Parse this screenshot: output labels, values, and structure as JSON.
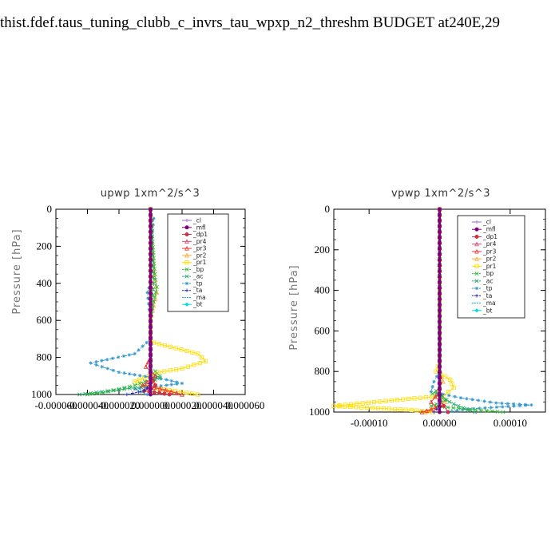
{
  "page_title": "thist.fdef.taus_tuning_clubb_c_invrs_tau_wpxp_n2_threshm  BUDGET at240E,29",
  "series_colors": {
    "_cl": "#9966cc",
    "_mfl": "#800080",
    "_dp1": "#cc3344",
    "_pr4": "#dd4466",
    "_pr3": "#ee3333",
    "_pr2": "#ffaa33",
    "_pr1": "#ffdd00",
    "_bp": "#33bb33",
    "_ac": "#22aa66",
    "_tp": "#3399cc",
    "_ta": "#2222bb",
    "_ma": "#00bbdd",
    "_bt": "#00dddd"
  },
  "chart_data": [
    {
      "type": "line",
      "title": "upwp   1xm^2/s^3",
      "ylabel": "Pressure [hPa]",
      "ylim": [
        1000,
        0
      ],
      "xlim": [
        -6e-05,
        6e-05
      ],
      "yticks": [
        0,
        200,
        400,
        600,
        800,
        1000
      ],
      "xticks": [
        -6e-05,
        -4e-05,
        -2e-05,
        0.0,
        2e-05,
        4e-05,
        6e-05
      ],
      "xtick_labels": [
        "-0.000060",
        "-0.000040",
        "-0.000020",
        "0.000000",
        "0.000020",
        "0.000040",
        "0.000060"
      ],
      "legend": [
        "_cl",
        "_mfl",
        "_dp1",
        "_pr4",
        "_pr3",
        "_pr2",
        "_pr1",
        "_bp",
        "_ac",
        "_tp",
        "_ta",
        "_ma",
        "_bt"
      ],
      "legend_position": "top-right",
      "series": [
        {
          "name": "_pr1",
          "points": [
            [
              0,
              0
            ],
            [
              0,
              700
            ],
            [
              2e-06,
              720
            ],
            [
              3e-05,
              780
            ],
            [
              3.5e-05,
              820
            ],
            [
              2e-05,
              860
            ],
            [
              5e-06,
              880
            ],
            [
              -1e-05,
              930
            ],
            [
              -2e-06,
              960
            ],
            [
              3e-05,
              1000
            ]
          ]
        },
        {
          "name": "_pr2",
          "points": [
            [
              1e-06,
              50
            ],
            [
              5e-07,
              150
            ],
            [
              3e-06,
              380
            ],
            [
              4e-06,
              450
            ],
            [
              2e-06,
              520
            ],
            [
              0,
              600
            ],
            [
              0,
              900
            ],
            [
              4e-06,
              960
            ],
            [
              2e-05,
              1000
            ]
          ]
        },
        {
          "name": "_tp",
          "points": [
            [
              2e-06,
              50
            ],
            [
              1e-06,
              150
            ],
            [
              0,
              400
            ],
            [
              -2e-06,
              450
            ],
            [
              0,
              600
            ],
            [
              0,
              700
            ],
            [
              -1e-05,
              780
            ],
            [
              -3.8e-05,
              830
            ],
            [
              -2e-05,
              880
            ],
            [
              1e-05,
              920
            ],
            [
              2e-05,
              940
            ],
            [
              -1e-05,
              970
            ],
            [
              -2e-06,
              1000
            ]
          ]
        },
        {
          "name": "_bp",
          "points": [
            [
              0,
              0
            ],
            [
              3e-06,
              380
            ],
            [
              4e-06,
              420
            ],
            [
              2e-06,
              500
            ],
            [
              0,
              600
            ],
            [
              0,
              850
            ],
            [
              6e-06,
              900
            ],
            [
              -1e-05,
              950
            ],
            [
              -3e-05,
              990
            ],
            [
              -4e-05,
              1000
            ]
          ]
        },
        {
          "name": "_ac",
          "points": [
            [
              0,
              0
            ],
            [
              2e-06,
              400
            ],
            [
              1e-06,
              500
            ],
            [
              0,
              600
            ],
            [
              0,
              880
            ],
            [
              6e-06,
              910
            ],
            [
              -6e-06,
              960
            ],
            [
              -4.5e-05,
              1000
            ]
          ]
        },
        {
          "name": "_pr3",
          "points": [
            [
              0,
              0
            ],
            [
              0,
              800
            ],
            [
              -3e-06,
              850
            ],
            [
              3e-06,
              900
            ],
            [
              -5e-06,
              950
            ],
            [
              6e-06,
              970
            ],
            [
              2e-05,
              1000
            ]
          ]
        },
        {
          "name": "_dp1",
          "points": [
            [
              0,
              0
            ],
            [
              0,
              900
            ],
            [
              3e-06,
              950
            ],
            [
              -4e-06,
              980
            ],
            [
              1.2e-05,
              1000
            ]
          ]
        },
        {
          "name": "_ta",
          "points": [
            [
              0,
              0
            ],
            [
              0,
              950
            ],
            [
              -4e-06,
              980
            ],
            [
              -1.5e-05,
              1000
            ]
          ]
        },
        {
          "name": "_ma",
          "points": [
            [
              0,
              0
            ],
            [
              5e-07,
              800
            ],
            [
              0,
              1000
            ]
          ]
        },
        {
          "name": "_mfl",
          "points": [
            [
              0,
              0
            ],
            [
              0,
              1000
            ]
          ]
        }
      ]
    },
    {
      "type": "line",
      "title": "vpwp   1xm^2/s^3",
      "ylabel": "Pressure [hPa]",
      "ylim": [
        1000,
        0
      ],
      "xlim": [
        -0.00015,
        0.00015
      ],
      "yticks": [
        0,
        200,
        400,
        600,
        800,
        1000
      ],
      "xticks": [
        -0.0001,
        0.0,
        0.0001
      ],
      "xtick_labels": [
        "-0.00010",
        "0.00000",
        "0.00010"
      ],
      "legend": [
        "_cl",
        "_mfl",
        "_dp1",
        "_pr4",
        "_pr3",
        "_pr2",
        "_pr1",
        "_bp",
        "_ac",
        "_tp",
        "_ta",
        "_ma",
        "_bt"
      ],
      "legend_position": "top-right",
      "series": [
        {
          "name": "_pr1",
          "points": [
            [
              0,
              0
            ],
            [
              0,
              750
            ],
            [
              -5e-06,
              800
            ],
            [
              1.5e-05,
              840
            ],
            [
              2e-05,
              880
            ],
            [
              5e-06,
              920
            ],
            [
              -6e-05,
              940
            ],
            [
              -0.00015,
              970
            ],
            [
              -4e-05,
              990
            ],
            [
              -1e-05,
              1000
            ]
          ]
        },
        {
          "name": "_pr2",
          "points": [
            [
              0,
              0
            ],
            [
              0,
              800
            ],
            [
              5e-06,
              850
            ],
            [
              -5e-06,
              900
            ],
            [
              8e-06,
              950
            ],
            [
              -2e-05,
              1000
            ]
          ]
        },
        {
          "name": "_tp",
          "points": [
            [
              0,
              0
            ],
            [
              0,
              800
            ],
            [
              -8e-06,
              850
            ],
            [
              -1.2e-05,
              900
            ],
            [
              3e-05,
              930
            ],
            [
              8e-05,
              955
            ],
            [
              0.00013,
              965
            ],
            [
              4e-05,
              985
            ],
            [
              1e-05,
              1000
            ]
          ]
        },
        {
          "name": "_bp",
          "points": [
            [
              0,
              0
            ],
            [
              0,
              880
            ],
            [
              -1e-05,
              910
            ],
            [
              1e-05,
              940
            ],
            [
              -1.2e-05,
              970
            ],
            [
              9e-05,
              1000
            ]
          ]
        },
        {
          "name": "_ac",
          "points": [
            [
              0,
              0
            ],
            [
              0,
              900
            ],
            [
              8e-06,
              940
            ],
            [
              2e-05,
              960
            ],
            [
              4e-05,
              990
            ],
            [
              5e-05,
              1000
            ]
          ]
        },
        {
          "name": "_pr3",
          "points": [
            [
              0,
              0
            ],
            [
              0,
              900
            ],
            [
              -1.2e-05,
              950
            ],
            [
              -5e-06,
              980
            ],
            [
              -2.5e-05,
              1000
            ]
          ]
        },
        {
          "name": "_dp1",
          "points": [
            [
              0,
              0
            ],
            [
              0,
              940
            ],
            [
              6e-06,
              970
            ],
            [
              1.2e-05,
              1000
            ]
          ]
        },
        {
          "name": "_ta",
          "points": [
            [
              0,
              0
            ],
            [
              0,
              960
            ],
            [
              -4e-06,
              985
            ],
            [
              -8e-06,
              1000
            ]
          ]
        },
        {
          "name": "_mfl",
          "points": [
            [
              0,
              0
            ],
            [
              0,
              1000
            ]
          ]
        }
      ]
    }
  ]
}
